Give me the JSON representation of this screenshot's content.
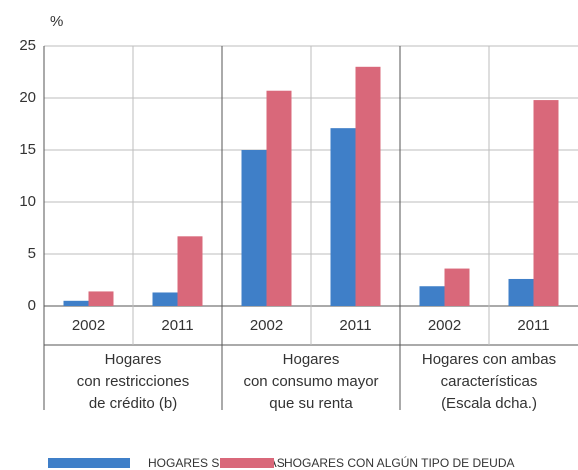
{
  "chart_data": {
    "type": "bar",
    "y_unit": "%",
    "categories": [
      "2002",
      "2011",
      "2002",
      "2011",
      "2002",
      "2011"
    ],
    "group_labels": [
      [
        "Hogares",
        "con restricciones",
        "de crédito (b)"
      ],
      [
        "Hogares",
        "con consumo mayor",
        "que su renta"
      ],
      [
        "Hogares con ambas",
        "características",
        "(Escala dcha.)"
      ]
    ],
    "series": [
      {
        "name": "HOGARES SIN DEUDAS",
        "color": "#3f7fc8",
        "values": [
          0.5,
          1.3,
          15,
          17.1,
          1.9,
          2.6
        ]
      },
      {
        "name": "HOGARES CON ALGÚN TIPO DE DEUDA",
        "color": "#d9687a",
        "values": [
          1.4,
          6.7,
          20.7,
          23,
          3.6,
          19.8
        ]
      }
    ],
    "ylim": [
      0,
      25
    ],
    "yticks": [
      0,
      5,
      10,
      15,
      20,
      25
    ],
    "grid": true
  }
}
